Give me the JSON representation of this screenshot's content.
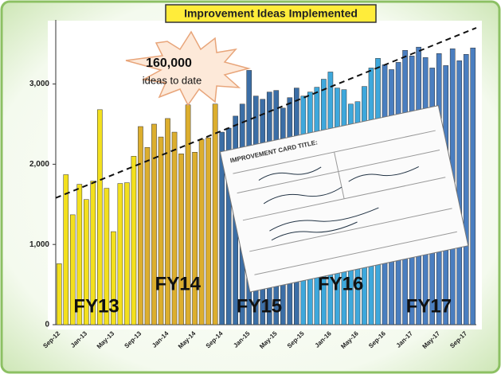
{
  "chart_data": {
    "type": "bar",
    "title": "Improvement Ideas Implemented",
    "callout": {
      "number": "160,000",
      "text": "ideas to date"
    },
    "card_title": "IMPROVEMENT CARD TITLE:",
    "categories": [
      "Sep-12",
      null,
      null,
      null,
      "Jan-13",
      null,
      null,
      null,
      "May-13",
      null,
      null,
      null,
      "Sep-13",
      null,
      null,
      null,
      "Jan-14",
      null,
      null,
      null,
      "May-14",
      null,
      null,
      null,
      "Sep-14",
      null,
      null,
      null,
      "Jan-15",
      null,
      null,
      null,
      "May-15",
      null,
      null,
      null,
      "Sep-15",
      null,
      null,
      null,
      "Jan-16",
      null,
      null,
      null,
      "May-16",
      null,
      null,
      null,
      "Sep-16",
      null,
      null,
      null,
      "Jan-17",
      null,
      null,
      null,
      "May-17",
      null,
      null,
      null,
      "Sep-17",
      null
    ],
    "series": [
      {
        "name": "FY13",
        "color": "#f3e01e",
        "values": [
          760,
          1870,
          1370,
          1750,
          1560,
          1790,
          2680,
          1700,
          1160,
          1760,
          1770,
          2100,
          null,
          null,
          null,
          null,
          null,
          null,
          null,
          null,
          null,
          null,
          null,
          null,
          null,
          null,
          null,
          null,
          null,
          null,
          null,
          null,
          null,
          null,
          null,
          null,
          null,
          null,
          null,
          null,
          null,
          null,
          null,
          null,
          null,
          null,
          null,
          null,
          null,
          null,
          null,
          null,
          null,
          null,
          null,
          null,
          null,
          null,
          null,
          null,
          null,
          null
        ]
      },
      {
        "name": "FY14",
        "color": "#dcae2e",
        "values": [
          null,
          null,
          null,
          null,
          null,
          null,
          null,
          null,
          null,
          null,
          null,
          null,
          2470,
          2210,
          2500,
          2340,
          2570,
          2400,
          2130,
          2740,
          2150,
          2310,
          2330,
          2750,
          null,
          null,
          null,
          null,
          null,
          null,
          null,
          null,
          null,
          null,
          null,
          null,
          null,
          null,
          null,
          null,
          null,
          null,
          null,
          null,
          null,
          null,
          null,
          null,
          null,
          null,
          null,
          null,
          null,
          null,
          null,
          null,
          null,
          null,
          null,
          null,
          null,
          null
        ]
      },
      {
        "name": "FY15",
        "color": "#3b6ea6",
        "values": [
          null,
          null,
          null,
          null,
          null,
          null,
          null,
          null,
          null,
          null,
          null,
          null,
          null,
          null,
          null,
          null,
          null,
          null,
          null,
          null,
          null,
          null,
          null,
          null,
          2400,
          2450,
          2600,
          2750,
          3170,
          2850,
          2810,
          2900,
          2920,
          2700,
          2830,
          2950,
          null,
          null,
          null,
          null,
          null,
          null,
          null,
          null,
          null,
          null,
          null,
          null,
          null,
          null,
          null,
          null,
          null,
          null,
          null,
          null,
          null,
          null,
          null,
          null,
          null,
          null
        ]
      },
      {
        "name": "FY16",
        "color": "#3ea8dc",
        "values": [
          null,
          null,
          null,
          null,
          null,
          null,
          null,
          null,
          null,
          null,
          null,
          null,
          null,
          null,
          null,
          null,
          null,
          null,
          null,
          null,
          null,
          null,
          null,
          null,
          null,
          null,
          null,
          null,
          null,
          null,
          null,
          null,
          null,
          null,
          null,
          null,
          2850,
          2900,
          2960,
          3060,
          3150,
          2950,
          2930,
          2750,
          2780,
          2970,
          3200,
          3320,
          null,
          null,
          null,
          null,
          null,
          null,
          null,
          null,
          null,
          null,
          null,
          null,
          null,
          null
        ]
      },
      {
        "name": "FY17",
        "color": "#4a7ec0",
        "values": [
          null,
          null,
          null,
          null,
          null,
          null,
          null,
          null,
          null,
          null,
          null,
          null,
          null,
          null,
          null,
          null,
          null,
          null,
          null,
          null,
          null,
          null,
          null,
          null,
          null,
          null,
          null,
          null,
          null,
          null,
          null,
          null,
          null,
          null,
          null,
          null,
          null,
          null,
          null,
          null,
          null,
          null,
          null,
          null,
          null,
          null,
          null,
          null,
          3240,
          3180,
          3270,
          3420,
          3350,
          3460,
          3330,
          3200,
          3380,
          3230,
          3440,
          3290,
          3370,
          3450
        ]
      }
    ],
    "trend": [
      1580,
      3700
    ],
    "ylim": [
      0,
      3700
    ],
    "yticks": [
      0,
      {
        "value": 1000,
        "label": "1,000"
      },
      {
        "value": 2000,
        "label": "2,000"
      },
      {
        "value": 3000,
        "label": "3,000"
      }
    ]
  }
}
